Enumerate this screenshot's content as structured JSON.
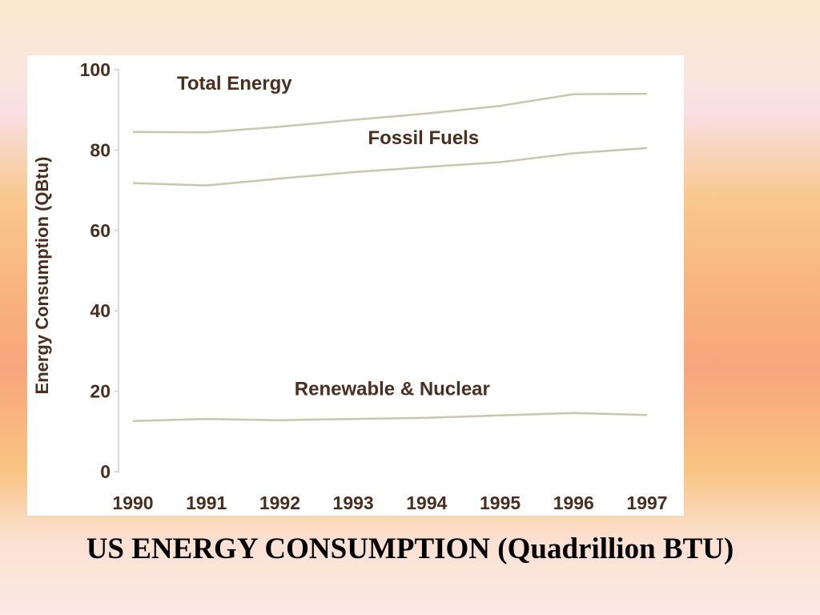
{
  "slide": {
    "caption": "US ENERGY CONSUMPTION (Quadrillion BTU)"
  },
  "colors": {
    "line": "#c9c6ae",
    "text": "#4a2e1e",
    "axis": "#d8d8d8",
    "panel": "#ffffff"
  },
  "chart_data": {
    "type": "line",
    "title": "",
    "xlabel": "",
    "ylabel": "Energy Consumption (QBtu)",
    "x": [
      1990,
      1991,
      1992,
      1993,
      1994,
      1995,
      1996,
      1997
    ],
    "x_tick_labels": [
      "1990",
      "1991",
      "1992",
      "1993",
      "1994",
      "1995",
      "1996",
      "1997"
    ],
    "ylim": [
      0,
      100
    ],
    "yticks": [
      0,
      20,
      40,
      60,
      80,
      100
    ],
    "y_tick_labels": [
      "0",
      "20",
      "40",
      "60",
      "80",
      "100"
    ],
    "grid": false,
    "legend": "inline labels",
    "series": [
      {
        "name": "Total Energy",
        "values": [
          84.5,
          84.4,
          85.8,
          87.5,
          89.1,
          91.0,
          93.9,
          94.0
        ]
      },
      {
        "name": "Fossil Fuels",
        "values": [
          71.8,
          71.2,
          72.9,
          74.5,
          75.8,
          77.0,
          79.2,
          80.5
        ]
      },
      {
        "name": "Renewable & Nuclear",
        "values": [
          12.6,
          13.1,
          12.8,
          13.1,
          13.4,
          14.0,
          14.6,
          14.1
        ]
      }
    ]
  }
}
